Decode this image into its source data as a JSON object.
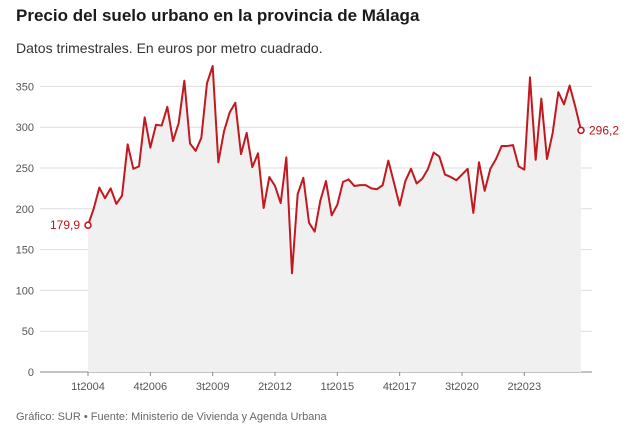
{
  "title": "Precio del suelo urbano en la provincia de Málaga",
  "subtitle": "Datos trimestrales. En euros por metro cuadrado.",
  "footer": "Gráfico: SUR • Fuente: Ministerio de Vivienda y Agenda Urbana",
  "colors": {
    "line": "#c0191f",
    "area": "#f0f0f0",
    "grid": "#dddddd",
    "axis": "#888888"
  },
  "chart_data": {
    "type": "area",
    "title": "Precio del suelo urbano en la provincia de Málaga",
    "subtitle": "Datos trimestrales. En euros por metro cuadrado.",
    "xlabel": "",
    "ylabel": "",
    "ylim": [
      0,
      375
    ],
    "yticks": [
      0,
      50,
      100,
      150,
      200,
      250,
      300,
      350
    ],
    "xticks": [
      "1t2004",
      "4t2006",
      "3t2009",
      "2t2012",
      "1t2015",
      "4t2017",
      "3t2020",
      "2t2023"
    ],
    "grid": true,
    "legend": "none",
    "start_label": "179,9",
    "end_label": "296,2",
    "series": [
      {
        "values": [
          179.9,
          200,
          226,
          213,
          225,
          206,
          216,
          279,
          249,
          252,
          312,
          275,
          303,
          302,
          325,
          283,
          305,
          357,
          280,
          271,
          287,
          354,
          375,
          257,
          295,
          318,
          330,
          267,
          293,
          251,
          268,
          201,
          239,
          228,
          207,
          263,
          121,
          218,
          238,
          183,
          172,
          210,
          234,
          192,
          205,
          233,
          236,
          228,
          229,
          229,
          225,
          224,
          229,
          259,
          232,
          204,
          234,
          249,
          231,
          237,
          249,
          269,
          264,
          242,
          239,
          235,
          242,
          249,
          195,
          257,
          222,
          249,
          261,
          277,
          277,
          278,
          252,
          248,
          361,
          260,
          335,
          261,
          293,
          343,
          328,
          351,
          325,
          296.2
        ]
      }
    ]
  }
}
